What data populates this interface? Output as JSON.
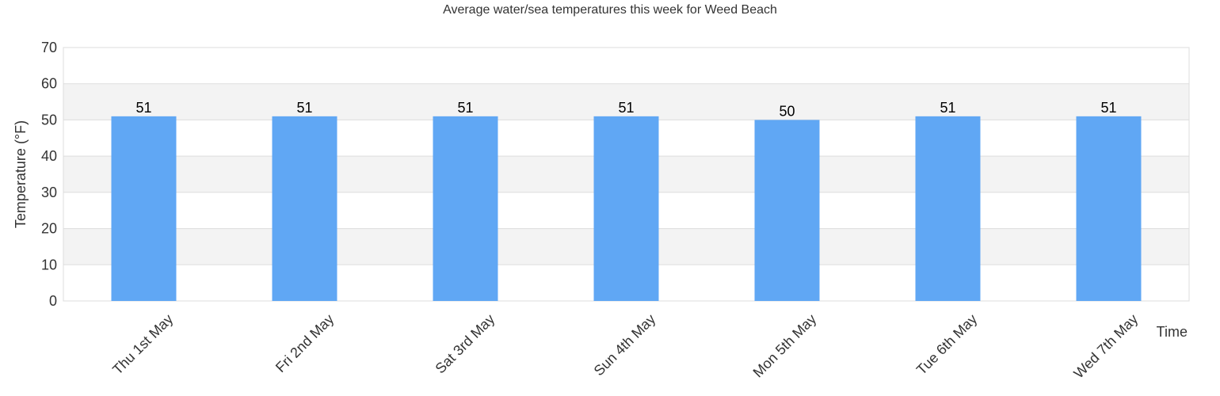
{
  "chart_data": {
    "type": "bar",
    "title": "Average water/sea temperatures this week for Weed Beach",
    "xlabel": "Time",
    "ylabel": "Temperature (°F)",
    "categories": [
      "Thu 1st May",
      "Fri 2nd May",
      "Sat 3rd May",
      "Sun 4th May",
      "Mon 5th May",
      "Tue 6th May",
      "Wed 7th May"
    ],
    "values": [
      51,
      51,
      51,
      51,
      50,
      51,
      51
    ],
    "ylim": [
      0,
      70
    ],
    "yticks": [
      0,
      10,
      20,
      30,
      40,
      50,
      60,
      70
    ],
    "grid": true,
    "legend": "none",
    "colors": {
      "bar": "#60a7f4",
      "band": "#f3f3f3",
      "gridline": "#dddddd",
      "frame": "#dddddd",
      "text": "#333333"
    }
  }
}
